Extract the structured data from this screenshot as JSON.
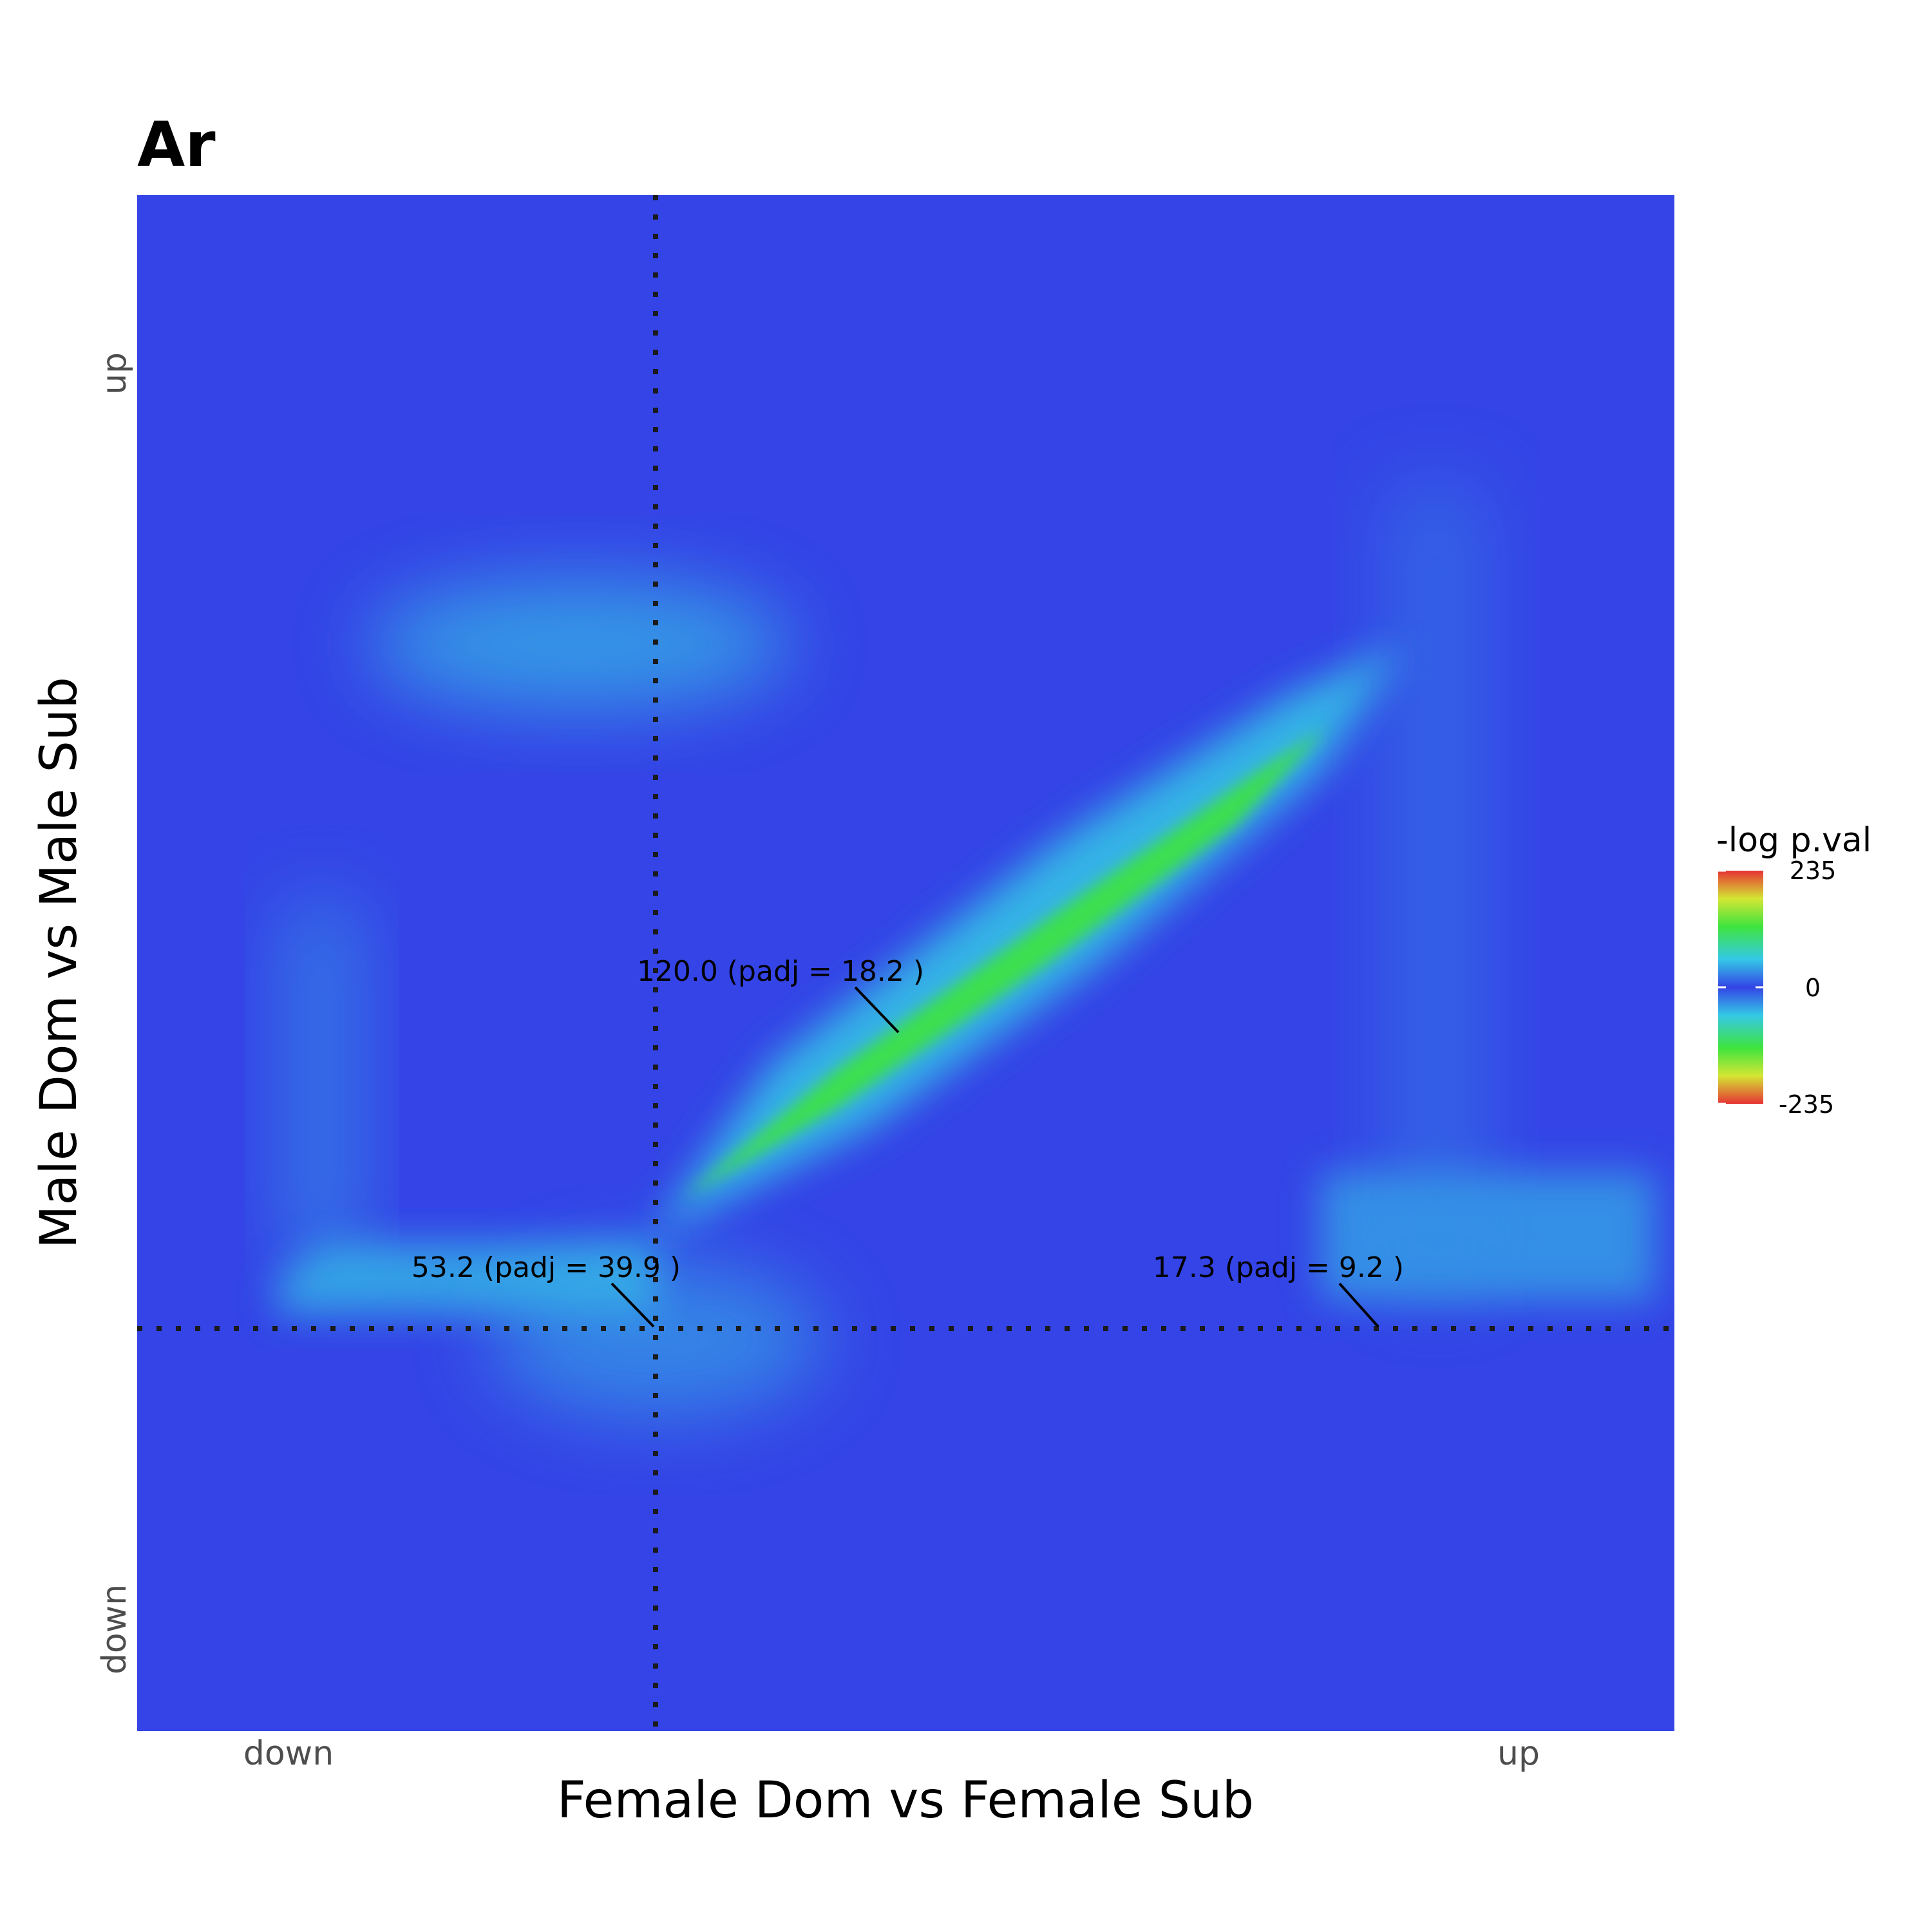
{
  "chart_data": {
    "type": "heatmap",
    "title": "Ar",
    "xlabel": "Female Dom vs Female Sub",
    "ylabel": "Male Dom vs Male Sub",
    "x_ticks": [
      "down",
      "up"
    ],
    "y_ticks": [
      "down",
      "up"
    ],
    "legend": {
      "title": "-log p.val",
      "ticks": [
        "235",
        "0",
        "-235"
      ],
      "range": [
        -235,
        235
      ],
      "placement": "right"
    },
    "annotations": [
      {
        "label": "120.0 (padj = 18.2 )",
        "value": 120.0,
        "padj": 18.2,
        "region": "up-up"
      },
      {
        "label": "53.2 (padj = 39.9 )",
        "value": 53.2,
        "padj": 39.9,
        "region": "down-up"
      },
      {
        "label": "17.3 (padj = 9.2 )",
        "value": 17.3,
        "padj": 9.2,
        "region": "up-down"
      }
    ],
    "reference_lines": [
      "vertical dotted",
      "horizontal dotted"
    ],
    "grid": false,
    "colors": {
      "background": "#3444e6",
      "low": "#3444e6",
      "mid_cyan": "#34c8e6",
      "mid_green": "#3ee43e",
      "mid_yellow": "#d4e634",
      "high": "#e63434"
    }
  }
}
